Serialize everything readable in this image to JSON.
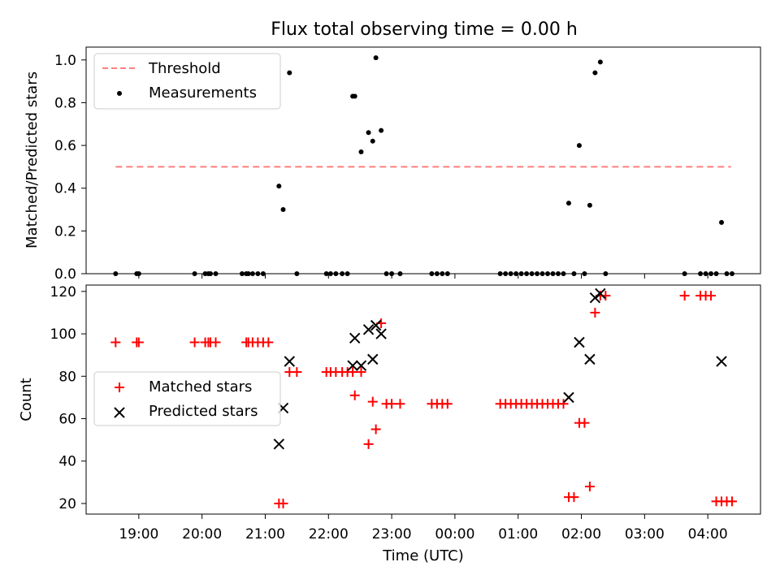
{
  "title": "Flux total observing time = 0.00 h",
  "colors": {
    "threshold": "#ff7f7f",
    "measurements": "#000000",
    "matched": "#ff0000",
    "predicted": "#000000"
  },
  "chart_data": [
    {
      "type": "scatter",
      "ylabel": "Matched/Predicted stars",
      "ylim": [
        0,
        1.06
      ],
      "yticks": [
        "0.0",
        "0.2",
        "0.4",
        "0.6",
        "0.8",
        "1.0"
      ],
      "legend": {
        "placement": "top-left",
        "entries": [
          "Threshold",
          "Measurements"
        ]
      },
      "threshold": {
        "name": "Threshold",
        "x": [
          "18:38",
          "04:22"
        ],
        "y": [
          0.5,
          0.5
        ]
      },
      "series": [
        {
          "name": "Measurements",
          "x": [
            "18:38",
            "18:58",
            "19:00",
            "19:53",
            "20:03",
            "20:06",
            "20:08",
            "20:13",
            "20:38",
            "20:42",
            "20:44",
            "20:48",
            "20:53",
            "20:58",
            "21:13",
            "21:17",
            "21:23",
            "21:30",
            "21:58",
            "22:02",
            "22:07",
            "22:13",
            "22:18",
            "22:23",
            "22:25",
            "22:31",
            "22:38",
            "22:42",
            "22:45",
            "22:50",
            "22:55",
            "23:00",
            "23:08",
            "23:38",
            "23:43",
            "23:48",
            "23:53",
            "00:43",
            "00:48",
            "00:53",
            "00:58",
            "01:03",
            "01:08",
            "01:13",
            "01:18",
            "01:23",
            "01:28",
            "01:33",
            "01:38",
            "01:43",
            "01:48",
            "01:53",
            "01:58",
            "02:03",
            "02:08",
            "02:13",
            "02:18",
            "02:23",
            "03:38",
            "03:53",
            "03:58",
            "04:03",
            "04:08",
            "04:13",
            "04:18",
            "04:23"
          ],
          "y": [
            0,
            0,
            0,
            0,
            0,
            0,
            0,
            0,
            0,
            0,
            0,
            0,
            0,
            0,
            0.41,
            0.3,
            0.94,
            0,
            0,
            0,
            0,
            0,
            0,
            0.83,
            0.83,
            0.57,
            0.66,
            0.62,
            1.01,
            0.67,
            0,
            0,
            0,
            0,
            0,
            0,
            0,
            0,
            0,
            0,
            0,
            0,
            0,
            0,
            0,
            0,
            0,
            0,
            0,
            0,
            0.33,
            0,
            0.6,
            0,
            0.32,
            0.94,
            0.99,
            0,
            0,
            0,
            0,
            0,
            0,
            0.24,
            0,
            0
          ]
        }
      ]
    },
    {
      "type": "scatter",
      "xlabel": "Time (UTC)",
      "ylabel": "Count",
      "ylim": [
        15,
        123
      ],
      "yticks": [
        "20",
        "40",
        "60",
        "80",
        "100",
        "120"
      ],
      "xtick_labels": [
        "19:00",
        "20:00",
        "21:00",
        "22:00",
        "23:00",
        "00:00",
        "01:00",
        "02:00",
        "03:00",
        "04:00"
      ],
      "legend": {
        "placement": "center-left",
        "entries": [
          "Matched stars",
          "Predicted stars"
        ]
      },
      "series": [
        {
          "name": "Matched stars",
          "x": [
            "18:38",
            "18:58",
            "19:00",
            "19:53",
            "20:03",
            "20:06",
            "20:08",
            "20:13",
            "20:42",
            "20:44",
            "20:48",
            "20:53",
            "20:58",
            "21:03",
            "21:13",
            "21:17",
            "21:23",
            "21:30",
            "21:58",
            "22:02",
            "22:07",
            "22:13",
            "22:18",
            "22:23",
            "22:25",
            "22:31",
            "22:38",
            "22:42",
            "22:45",
            "22:50",
            "22:55",
            "23:00",
            "23:08",
            "23:38",
            "23:43",
            "23:48",
            "23:53",
            "00:43",
            "00:48",
            "00:53",
            "00:58",
            "01:03",
            "01:08",
            "01:13",
            "01:18",
            "01:23",
            "01:28",
            "01:33",
            "01:38",
            "01:43",
            "01:48",
            "01:53",
            "01:58",
            "02:03",
            "02:08",
            "02:13",
            "02:18",
            "02:23",
            "03:38",
            "03:53",
            "03:58",
            "04:03",
            "04:08",
            "04:13",
            "04:18",
            "04:23"
          ],
          "y": [
            96,
            96,
            96,
            96,
            96,
            96,
            96,
            96,
            96,
            96,
            96,
            96,
            96,
            96,
            20,
            20,
            82,
            82,
            82,
            82,
            82,
            82,
            82,
            82,
            71,
            82,
            48,
            68,
            55,
            105,
            67,
            67,
            67,
            67,
            67,
            67,
            67,
            67,
            67,
            67,
            67,
            67,
            67,
            67,
            67,
            67,
            67,
            67,
            67,
            67,
            23,
            23,
            58,
            58,
            28,
            110,
            118,
            118,
            118,
            118,
            118,
            118,
            21,
            21,
            21,
            21
          ]
        },
        {
          "name": "Predicted stars",
          "x": [
            "21:13",
            "21:17",
            "21:23",
            "22:23",
            "22:25",
            "22:31",
            "22:38",
            "22:42",
            "22:45",
            "22:50",
            "01:48",
            "01:58",
            "02:08",
            "02:13",
            "02:18",
            "04:13"
          ],
          "y": [
            48,
            65,
            87,
            85,
            98,
            85,
            102,
            88,
            104,
            100,
            70,
            96,
            88,
            117,
            119,
            87
          ]
        }
      ]
    }
  ]
}
